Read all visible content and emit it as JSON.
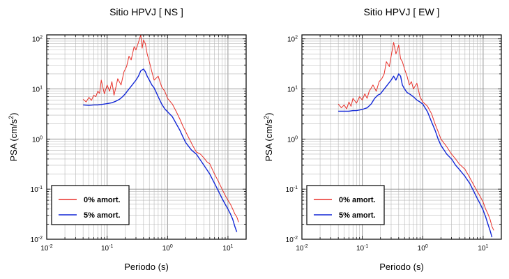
{
  "chart_data": [
    {
      "type": "line",
      "title": "Sitio HPVJ [ NS ]",
      "xlabel": "Periodo (s)",
      "ylabel": "PSA (cm/s²)",
      "ylabel_base": "PSA (cm/s",
      "ylabel_sup": "2",
      "ylabel_close": ")",
      "xscale": "log",
      "yscale": "log",
      "xlim": [
        0.01,
        20
      ],
      "ylim": [
        0.01,
        120
      ],
      "grid": true,
      "legend_position": "bottom-left",
      "xticks": [
        {
          "base": "10",
          "exp": "-2"
        },
        {
          "base": "10",
          "exp": "-1"
        },
        {
          "base": "10",
          "exp": "0"
        },
        {
          "base": "10",
          "exp": "1"
        }
      ],
      "yticks": [
        {
          "base": "10",
          "exp": "-2"
        },
        {
          "base": "10",
          "exp": "-1"
        },
        {
          "base": "10",
          "exp": "0"
        },
        {
          "base": "10",
          "exp": "1"
        },
        {
          "base": "10",
          "exp": "2"
        }
      ],
      "series": [
        {
          "name": "0% amort.",
          "color": "#e8312a",
          "x": [
            0.04,
            0.045,
            0.05,
            0.055,
            0.06,
            0.065,
            0.07,
            0.075,
            0.08,
            0.09,
            0.1,
            0.11,
            0.12,
            0.13,
            0.14,
            0.15,
            0.17,
            0.19,
            0.21,
            0.23,
            0.25,
            0.28,
            0.3,
            0.33,
            0.36,
            0.38,
            0.4,
            0.43,
            0.46,
            0.5,
            0.55,
            0.6,
            0.7,
            0.8,
            0.9,
            1.0,
            1.2,
            1.4,
            1.6,
            1.8,
            2.0,
            2.3,
            2.6,
            3.0,
            3.5,
            4.0,
            4.5,
            5.0,
            6.0,
            7.0,
            8.0,
            9.0,
            10.0,
            11.0,
            12.0,
            13.0,
            14.0,
            15.0
          ],
          "y": [
            6.2,
            5.5,
            6.8,
            5.9,
            7.5,
            7.0,
            9.0,
            8.2,
            15.0,
            8.0,
            12.0,
            9.0,
            14.0,
            7.5,
            11.0,
            16.0,
            12.0,
            22.0,
            28.0,
            45.0,
            38.0,
            70.0,
            60.0,
            85.0,
            120.0,
            65.0,
            95.0,
            80.0,
            50.0,
            35.0,
            22.0,
            15.0,
            18.0,
            11.0,
            9.0,
            6.5,
            5.0,
            3.5,
            2.5,
            1.8,
            1.4,
            1.0,
            0.75,
            0.55,
            0.5,
            0.42,
            0.35,
            0.32,
            0.2,
            0.14,
            0.1,
            0.075,
            0.06,
            0.05,
            0.04,
            0.032,
            0.028,
            0.022
          ]
        },
        {
          "name": "5% amort.",
          "color": "#1227d6",
          "x": [
            0.04,
            0.05,
            0.06,
            0.07,
            0.08,
            0.09,
            0.1,
            0.12,
            0.14,
            0.16,
            0.18,
            0.2,
            0.23,
            0.26,
            0.3,
            0.33,
            0.36,
            0.4,
            0.43,
            0.46,
            0.5,
            0.55,
            0.6,
            0.7,
            0.8,
            0.9,
            1.0,
            1.2,
            1.4,
            1.6,
            1.8,
            2.0,
            2.5,
            3.0,
            3.5,
            4.0,
            5.0,
            6.0,
            7.0,
            8.0,
            9.0,
            10.0,
            11.0,
            12.0,
            13.0,
            14.0
          ],
          "y": [
            4.8,
            4.7,
            4.8,
            4.8,
            4.9,
            5.0,
            5.1,
            5.3,
            5.7,
            6.2,
            7.0,
            8.0,
            10.0,
            12.0,
            15.0,
            18.0,
            23.0,
            25.0,
            22.0,
            18.0,
            15.0,
            12.0,
            10.5,
            7.0,
            5.0,
            4.0,
            3.5,
            2.8,
            2.0,
            1.5,
            1.1,
            0.85,
            0.6,
            0.5,
            0.38,
            0.3,
            0.2,
            0.13,
            0.09,
            0.065,
            0.05,
            0.04,
            0.032,
            0.025,
            0.018,
            0.014
          ]
        }
      ]
    },
    {
      "type": "line",
      "title": "Sitio HPVJ [ EW ]",
      "xlabel": "Periodo (s)",
      "ylabel": "PSA (cm/s²)",
      "ylabel_base": "PSA (cm/s",
      "ylabel_sup": "2",
      "ylabel_close": ")",
      "xscale": "log",
      "yscale": "log",
      "xlim": [
        0.01,
        20
      ],
      "ylim": [
        0.01,
        120
      ],
      "grid": true,
      "legend_position": "bottom-left",
      "xticks": [
        {
          "base": "10",
          "exp": "-2"
        },
        {
          "base": "10",
          "exp": "-1"
        },
        {
          "base": "10",
          "exp": "0"
        },
        {
          "base": "10",
          "exp": "1"
        }
      ],
      "yticks": [
        {
          "base": "10",
          "exp": "-2"
        },
        {
          "base": "10",
          "exp": "-1"
        },
        {
          "base": "10",
          "exp": "0"
        },
        {
          "base": "10",
          "exp": "1"
        },
        {
          "base": "10",
          "exp": "2"
        }
      ],
      "series": [
        {
          "name": "0% amort.",
          "color": "#e8312a",
          "x": [
            0.04,
            0.045,
            0.05,
            0.055,
            0.06,
            0.065,
            0.07,
            0.08,
            0.09,
            0.1,
            0.11,
            0.12,
            0.13,
            0.15,
            0.17,
            0.19,
            0.21,
            0.23,
            0.25,
            0.28,
            0.3,
            0.33,
            0.36,
            0.38,
            0.4,
            0.43,
            0.46,
            0.5,
            0.55,
            0.6,
            0.65,
            0.7,
            0.8,
            0.9,
            1.0,
            1.2,
            1.4,
            1.6,
            1.8,
            2.0,
            2.5,
            3.0,
            3.5,
            4.0,
            5.0,
            6.0,
            7.0,
            8.0,
            9.0,
            10.0,
            11.0,
            12.0,
            13.0,
            14.0,
            15.0
          ],
          "y": [
            5.0,
            4.2,
            4.8,
            4.0,
            5.5,
            4.5,
            6.5,
            5.2,
            7.0,
            6.0,
            8.0,
            6.5,
            9.0,
            12.0,
            9.0,
            14.0,
            16.0,
            20.0,
            35.0,
            28.0,
            45.0,
            85.0,
            50.0,
            60.0,
            75.0,
            40.0,
            35.0,
            25.0,
            18.0,
            12.0,
            14.0,
            10.0,
            13.0,
            7.0,
            5.5,
            4.5,
            3.2,
            2.0,
            1.4,
            1.0,
            0.7,
            0.5,
            0.4,
            0.32,
            0.25,
            0.17,
            0.12,
            0.09,
            0.07,
            0.055,
            0.04,
            0.032,
            0.025,
            0.018,
            0.015
          ]
        },
        {
          "name": "5% amort.",
          "color": "#1227d6",
          "x": [
            0.04,
            0.05,
            0.06,
            0.07,
            0.08,
            0.09,
            0.1,
            0.12,
            0.14,
            0.16,
            0.18,
            0.2,
            0.23,
            0.26,
            0.3,
            0.33,
            0.36,
            0.4,
            0.43,
            0.46,
            0.5,
            0.55,
            0.6,
            0.7,
            0.8,
            0.9,
            1.0,
            1.2,
            1.4,
            1.6,
            1.8,
            2.0,
            2.5,
            3.0,
            3.5,
            4.0,
            5.0,
            6.0,
            7.0,
            8.0,
            9.0,
            10.0,
            11.0,
            12.0,
            13.0,
            14.0
          ],
          "y": [
            3.6,
            3.6,
            3.6,
            3.7,
            3.7,
            3.8,
            3.9,
            4.2,
            5.0,
            6.5,
            7.5,
            8.0,
            10.0,
            12.0,
            15.0,
            18.0,
            15.0,
            20.0,
            18.0,
            12.0,
            10.0,
            8.5,
            8.0,
            7.0,
            6.0,
            5.5,
            5.0,
            3.5,
            2.2,
            1.5,
            1.0,
            0.75,
            0.5,
            0.4,
            0.3,
            0.25,
            0.18,
            0.13,
            0.09,
            0.065,
            0.05,
            0.038,
            0.028,
            0.02,
            0.015,
            0.011
          ]
        }
      ]
    }
  ]
}
